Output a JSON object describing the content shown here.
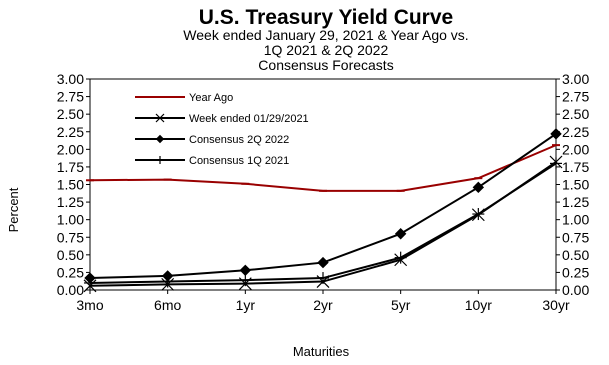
{
  "chart_data": {
    "type": "line",
    "title": "U.S. Treasury Yield Curve",
    "subtitle_lines": [
      "Week ended January 29, 2021 & Year Ago vs.",
      "1Q 2021 & 2Q 2022",
      "Consensus Forecasts"
    ],
    "xlabel": "Maturities",
    "ylabel": "Percent",
    "ylim": [
      0,
      3
    ],
    "yticks": [
      "0.00",
      "0.25",
      "0.50",
      "0.75",
      "1.00",
      "1.25",
      "1.50",
      "1.75",
      "2.00",
      "2.25",
      "2.50",
      "2.75",
      "3.00"
    ],
    "categories": [
      "3mo",
      "6mo",
      "1yr",
      "2yr",
      "5yr",
      "10yr",
      "30yr"
    ],
    "legend_position": "top-left",
    "grid": false,
    "series": [
      {
        "name": "Year Ago",
        "color": "#990000",
        "marker": "dash",
        "values": [
          1.56,
          1.57,
          1.51,
          1.41,
          1.41,
          1.59,
          2.06
        ]
      },
      {
        "name": "Week ended 01/29/2021",
        "color": "#000000",
        "marker": "x",
        "values": [
          0.06,
          0.08,
          0.09,
          0.12,
          0.43,
          1.07,
          1.82
        ]
      },
      {
        "name": "Consensus 2Q 2022",
        "color": "#000000",
        "marker": "diamond",
        "values": [
          0.17,
          0.2,
          0.28,
          0.39,
          0.8,
          1.46,
          2.22
        ]
      },
      {
        "name": "Consensus 1Q 2021",
        "color": "#000000",
        "marker": "plus",
        "values": [
          0.1,
          0.12,
          0.14,
          0.17,
          0.46,
          1.08,
          1.8
        ]
      }
    ]
  }
}
